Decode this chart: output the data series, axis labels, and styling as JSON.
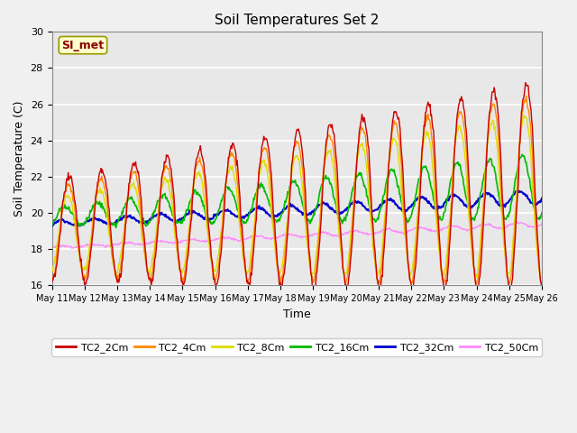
{
  "title": "Soil Temperatures Set 2",
  "xlabel": "Time",
  "ylabel": "Soil Temperature (C)",
  "ylim": [
    16,
    30
  ],
  "yticks": [
    16,
    18,
    20,
    22,
    24,
    26,
    28,
    30
  ],
  "annotation_text": "SI_met",
  "series_colors": {
    "TC2_2Cm": "#cc0000",
    "TC2_4Cm": "#ff8800",
    "TC2_8Cm": "#dddd00",
    "TC2_16Cm": "#00bb00",
    "TC2_32Cm": "#0000cc",
    "TC2_50Cm": "#ff88ff"
  },
  "plot_bg_color": "#e8e8e8",
  "fig_bg_color": "#f0f0f0",
  "n_days": 15,
  "start_day": 11
}
